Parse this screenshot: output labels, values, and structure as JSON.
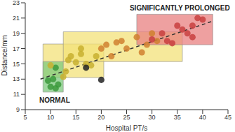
{
  "chart_data": {
    "type": "scatter",
    "x_label": "Hospital PT/s",
    "y_label": "Distance/mm",
    "xlim": [
      5,
      45
    ],
    "xticks": [
      5,
      10,
      15,
      20,
      25,
      30,
      35,
      40,
      45
    ],
    "ylim": [
      9,
      23
    ],
    "yticks": [
      9,
      11,
      13,
      15,
      17,
      19,
      21,
      23
    ],
    "grid": false,
    "x": [
      10,
      11,
      11.5,
      10.5,
      9.5,
      11,
      10,
      13,
      13.5,
      14,
      15,
      16,
      17,
      18,
      19,
      16,
      12.5,
      20,
      17,
      20,
      21,
      22,
      23,
      24,
      25,
      27,
      28,
      29,
      30,
      31,
      30,
      32,
      33,
      35,
      36,
      37,
      38,
      39,
      40,
      34,
      38
    ],
    "y": [
      12,
      11.8,
      12.3,
      13,
      12.8,
      14.5,
      14.8,
      14,
      15.5,
      16,
      15.2,
      16.3,
      15,
      14.8,
      16,
      17,
      13.3,
      12.9,
      14.5,
      17,
      17.5,
      16,
      17.8,
      18,
      17,
      18.5,
      16.5,
      17.5,
      19,
      18,
      18.2,
      19,
      18,
      20,
      19.5,
      19,
      20,
      21,
      20.8,
      17.7,
      18.5
    ],
    "colors": [
      "#3c9a3c",
      "#3c9a3c",
      "#3c9a3c",
      "#3c9a3c",
      "#3c9a3c",
      "#3c9a3c",
      "#c8b030",
      "#c8b030",
      "#c8b030",
      "#c8b030",
      "#c8b030",
      "#c8b030",
      "#c8b030",
      "#c8b030",
      "#c8b030",
      "#c8b030",
      "#c8b030",
      "#222222",
      "#222222",
      "#d08030",
      "#d08030",
      "#d08030",
      "#d08030",
      "#d08030",
      "#d08030",
      "#d08030",
      "#d08030",
      "#d08030",
      "#d08030",
      "#d08030",
      "#c84040",
      "#c84040",
      "#c84040",
      "#c84040",
      "#c84040",
      "#c84040",
      "#c84040",
      "#c84040",
      "#c84040",
      "#c84040",
      "#c84040"
    ],
    "regions": [
      {
        "x": [
          8.5,
          20.5
        ],
        "y": [
          13.2,
          17.6
        ],
        "color": "#f3e27a"
      },
      {
        "x": [
          12.5,
          36
        ],
        "y": [
          15.3,
          19.2
        ],
        "color": "#f3e27a"
      },
      {
        "x": [
          27,
          42
        ],
        "y": [
          17.5,
          21.5
        ],
        "color": "#e88080"
      },
      {
        "x": [
          8.5,
          12.5
        ],
        "y": [
          11.3,
          15.3
        ],
        "color": "#7dc97d"
      }
    ],
    "trend": {
      "x": [
        8,
        42
      ],
      "y": [
        13,
        20.6
      ],
      "line_style": "dashed",
      "color": "#333333"
    },
    "annotations": [
      {
        "text": "NORMAL",
        "x": 10.8,
        "y": 10.2
      },
      {
        "text": "SIGNIFICANTLY PROLONGED",
        "x": 35.5,
        "y": 22.3
      }
    ]
  }
}
